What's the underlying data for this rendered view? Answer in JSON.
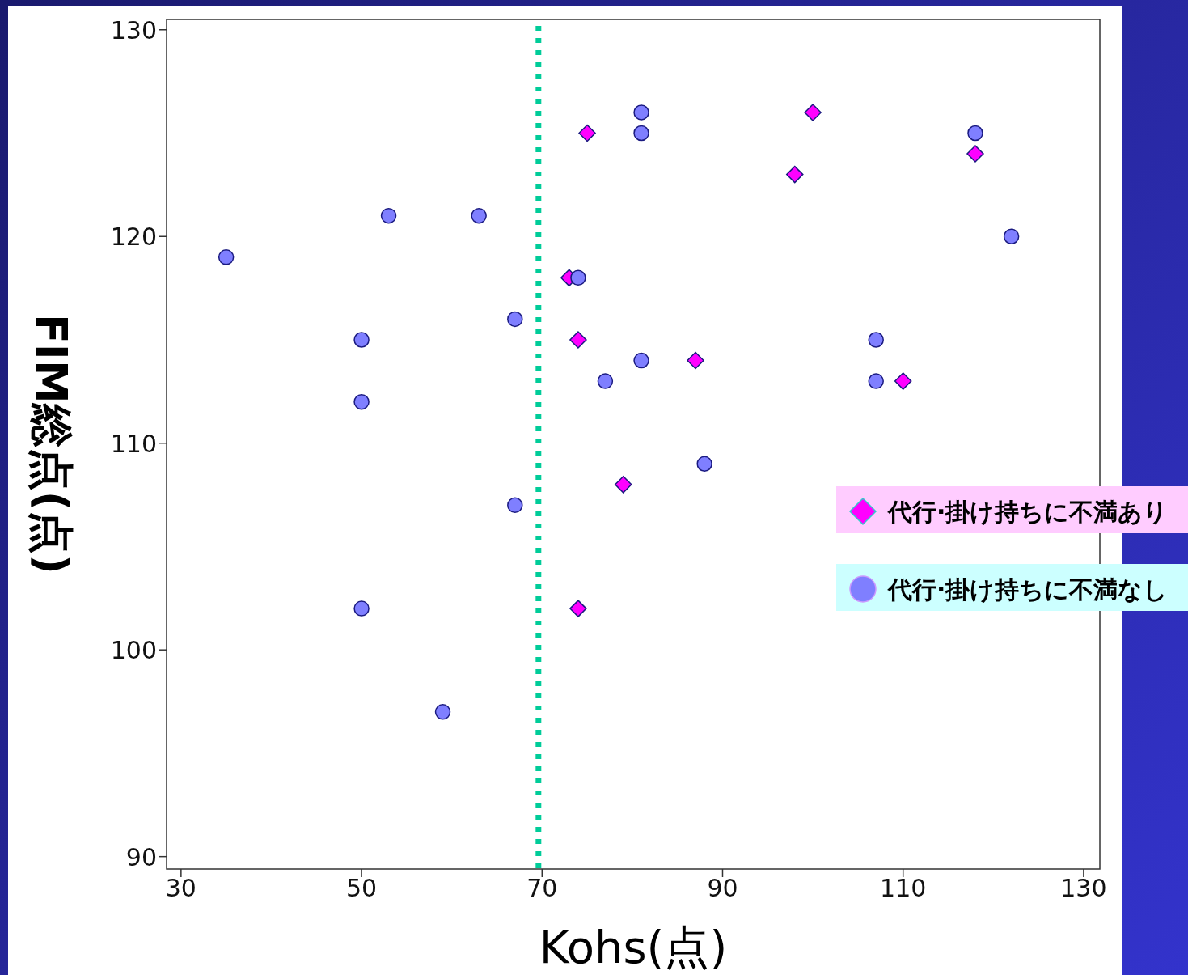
{
  "chart_data": {
    "type": "scatter",
    "xlabel": "Kohs(点)",
    "ylabel": "FIM総点(点)",
    "xlim": [
      28.4,
      131.8
    ],
    "ylim": [
      89.4,
      130.5
    ],
    "xticks": [
      30,
      50,
      70,
      90,
      110,
      130
    ],
    "yticks": [
      90,
      100,
      110,
      120,
      130
    ],
    "grid": false,
    "legend": "right",
    "series": [
      {
        "name": "代行·掛け持ちに不満あり",
        "color": "#ff00ff",
        "marker": "diamond",
        "x": [
          75,
          100,
          98,
          118,
          73,
          74,
          87,
          110,
          79,
          74
        ],
        "values": [
          125,
          126,
          123,
          124,
          118,
          115,
          114,
          113,
          108,
          102
        ]
      },
      {
        "name": "代行·掛け持ちに不満なし",
        "color": "#7f7fff",
        "marker": "circle",
        "x": [
          35,
          53,
          63,
          50,
          50,
          67,
          67,
          50,
          59,
          81,
          81,
          74,
          81,
          77,
          88,
          107,
          107,
          118,
          122
        ],
        "values": [
          119,
          121,
          121,
          115,
          112,
          116,
          107,
          102,
          97,
          126,
          125,
          118,
          114,
          113,
          109,
          115,
          113,
          125,
          120
        ]
      }
    ],
    "ref_lines": [
      {
        "axis": "x",
        "value": 69.6,
        "color": "#00cc99",
        "line_style": "dotted"
      }
    ]
  }
}
